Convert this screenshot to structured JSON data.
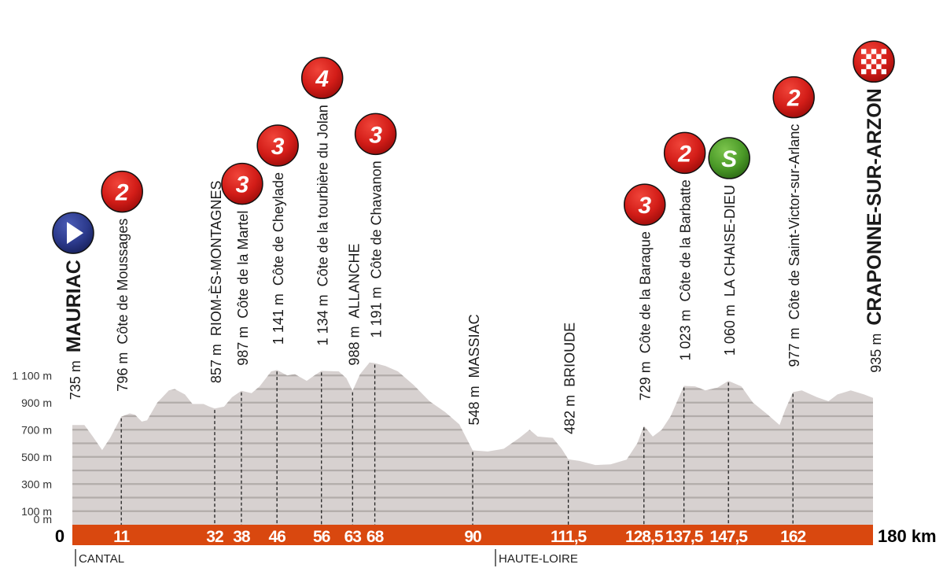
{
  "chart_data": {
    "type": "area",
    "title": "",
    "xlabel": "",
    "ylabel": "",
    "xlim": [
      0,
      180
    ],
    "ylim": [
      0,
      1200
    ],
    "grid": true,
    "x_unit_label": "180 km",
    "y_ticks": [
      {
        "value": 0,
        "label": "0 m"
      },
      {
        "value": 100,
        "label": "100 m"
      },
      {
        "value": 300,
        "label": "300 m"
      },
      {
        "value": 500,
        "label": "500 m"
      },
      {
        "value": 700,
        "label": "700 m"
      },
      {
        "value": 900,
        "label": "900 m"
      },
      {
        "value": 1100,
        "label": "1 100 m"
      }
    ],
    "x_ticks": [
      {
        "value": 0,
        "label": "0"
      },
      {
        "value": 11,
        "label": "11"
      },
      {
        "value": 32,
        "label": "32"
      },
      {
        "value": 38,
        "label": "38"
      },
      {
        "value": 46,
        "label": "46"
      },
      {
        "value": 56,
        "label": "56"
      },
      {
        "value": 63,
        "label": "63"
      },
      {
        "value": 68,
        "label": "68"
      },
      {
        "value": 90,
        "label": "90"
      },
      {
        "value": 111.5,
        "label": "111,5"
      },
      {
        "value": 128.5,
        "label": "128,5"
      },
      {
        "value": 137.5,
        "label": "137,5"
      },
      {
        "value": 147.5,
        "label": "147,5"
      },
      {
        "value": 162,
        "label": "162"
      }
    ],
    "profile": [
      [
        0,
        735
      ],
      [
        2.7,
        735
      ],
      [
        4.6,
        650
      ],
      [
        6.7,
        550
      ],
      [
        8.5,
        640
      ],
      [
        11,
        796
      ],
      [
        12.9,
        820
      ],
      [
        14.1,
        810
      ],
      [
        15.6,
        760
      ],
      [
        16.8,
        770
      ],
      [
        19.1,
        900
      ],
      [
        21.7,
        990
      ],
      [
        23,
        1000
      ],
      [
        25.3,
        960
      ],
      [
        27,
        890
      ],
      [
        29.5,
        890
      ],
      [
        30.8,
        870
      ],
      [
        32,
        857
      ],
      [
        34.1,
        870
      ],
      [
        35.9,
        940
      ],
      [
        38,
        987
      ],
      [
        40.3,
        970
      ],
      [
        42.1,
        1020
      ],
      [
        44.7,
        1130
      ],
      [
        46,
        1141
      ],
      [
        48.3,
        1100
      ],
      [
        50,
        1110
      ],
      [
        52.7,
        1060
      ],
      [
        54.4,
        1100
      ],
      [
        56,
        1134
      ],
      [
        59.9,
        1130
      ],
      [
        61.6,
        1080
      ],
      [
        63,
        988
      ],
      [
        64.7,
        1110
      ],
      [
        66.8,
        1195
      ],
      [
        68,
        1191
      ],
      [
        70.4,
        1170
      ],
      [
        73.2,
        1130
      ],
      [
        76.7,
        1030
      ],
      [
        80.3,
        910
      ],
      [
        83.8,
        830
      ],
      [
        87,
        740
      ],
      [
        90,
        548
      ],
      [
        93.4,
        540
      ],
      [
        97,
        560
      ],
      [
        100.5,
        640
      ],
      [
        102.8,
        700
      ],
      [
        104.6,
        650
      ],
      [
        108,
        640
      ],
      [
        110,
        560
      ],
      [
        111.5,
        482
      ],
      [
        114,
        470
      ],
      [
        117.6,
        440
      ],
      [
        121,
        445
      ],
      [
        124.6,
        480
      ],
      [
        127,
        600
      ],
      [
        128.5,
        729
      ],
      [
        130.5,
        650
      ],
      [
        132.5,
        700
      ],
      [
        134.5,
        800
      ],
      [
        137.5,
        1023
      ],
      [
        140,
        1020
      ],
      [
        142.3,
        990
      ],
      [
        145,
        1010
      ],
      [
        147.5,
        1060
      ],
      [
        150.4,
        1020
      ],
      [
        153,
        900
      ],
      [
        156,
        820
      ],
      [
        159,
        735
      ],
      [
        160.3,
        850
      ],
      [
        162,
        977
      ],
      [
        164,
        990
      ],
      [
        167.4,
        940
      ],
      [
        170,
        910
      ],
      [
        172,
        960
      ],
      [
        175,
        990
      ],
      [
        178,
        960
      ],
      [
        180,
        935
      ]
    ],
    "waypoints": [
      {
        "km": 0,
        "elevation": "735 m",
        "name": "MAURIAC",
        "emphasis": true,
        "marker": "start"
      },
      {
        "km": 11,
        "elevation": "796 m",
        "name": "Côte de Moussages",
        "marker": "climb",
        "category": "2"
      },
      {
        "km": 32,
        "elevation": "857 m",
        "name": "RIOM-ÈS-MONTAGNES"
      },
      {
        "km": 38,
        "elevation": "987 m",
        "name": "Côte de la Martel",
        "marker": "climb",
        "category": "3"
      },
      {
        "km": 46,
        "elevation": "1 141 m",
        "name": "Côte de Cheylade",
        "marker": "climb",
        "category": "3"
      },
      {
        "km": 56,
        "elevation": "1 134 m",
        "name": "Côte de la tourbière du Jolan",
        "marker": "climb",
        "category": "4"
      },
      {
        "km": 63,
        "elevation": "988 m",
        "name": "ALLANCHE"
      },
      {
        "km": 68,
        "elevation": "1 191 m",
        "name": "Côte de Chavanon",
        "marker": "climb",
        "category": "3"
      },
      {
        "km": 90,
        "elevation": "548 m",
        "name": "MASSIAC"
      },
      {
        "km": 111.5,
        "elevation": "482 m",
        "name": "BRIOUDE"
      },
      {
        "km": 128.5,
        "elevation": "729 m",
        "name": "Côte de la Baraque",
        "marker": "climb",
        "category": "3"
      },
      {
        "km": 137.5,
        "elevation": "1 023 m",
        "name": "Côte de la Barbatte",
        "marker": "climb",
        "category": "2"
      },
      {
        "km": 147.5,
        "elevation": "1 060 m",
        "name": "LA CHAISE-DIEU",
        "marker": "sprint",
        "category": "S"
      },
      {
        "km": 162,
        "elevation": "977 m",
        "name": "Côte de Saint-Victor-sur-Arlanc",
        "marker": "climb",
        "category": "2"
      },
      {
        "km": 180,
        "elevation": "935 m",
        "name": "CRAPONNE-SUR-ARZON",
        "emphasis": true,
        "marker": "finish"
      }
    ],
    "regions": [
      {
        "km": 0,
        "label": "CANTAL"
      },
      {
        "km": 95,
        "label": "HAUTE-LOIRE"
      }
    ],
    "colors": {
      "profile_fill": "#d7d1d0",
      "grid_line": "#b2acaa",
      "km_bar": "#d9480f",
      "climb_marker": "#d8211c",
      "sprint_marker": "#4e9a2a",
      "start_marker": "#2c3a8c"
    }
  }
}
